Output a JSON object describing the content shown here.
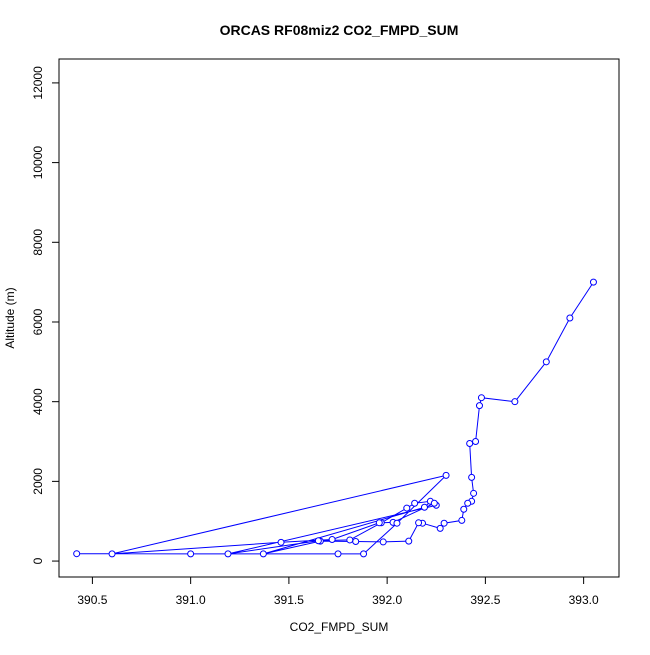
{
  "chart_data": {
    "type": "line",
    "title": "ORCAS RF08miz2 CO2_FMPD_SUM",
    "xlabel": "CO2_FMPD_SUM",
    "ylabel": "Altitude (m)",
    "xlim": [
      390.33,
      393.18
    ],
    "ylim": [
      -400,
      12600
    ],
    "x_ticks": [
      390.5,
      391.0,
      391.5,
      392.0,
      392.5,
      393.0
    ],
    "x_tick_labels": [
      "390.5",
      "391.0",
      "391.5",
      "392.0",
      "392.5",
      "393.0"
    ],
    "y_ticks": [
      0,
      2000,
      4000,
      6000,
      8000,
      10000,
      12000
    ],
    "y_tick_labels": [
      "0",
      "2000",
      "4000",
      "6000",
      "8000",
      "10000",
      "12000"
    ],
    "grid": false,
    "series_color": "#0000ff",
    "marker": "open-circle",
    "series": [
      {
        "x": [
          393.05,
          392.93,
          392.81,
          392.65,
          392.48,
          392.47,
          392.45,
          392.42,
          392.43,
          392.44,
          392.43,
          392.41,
          392.39,
          392.38,
          392.29,
          392.27,
          392.18,
          392.16,
          392.11,
          391.98,
          391.84,
          391.66,
          391.37,
          392.19,
          392.22,
          392.14,
          392.1,
          391.97,
          391.81,
          391.65,
          391.19,
          392.25,
          392.24,
          392.03,
          391.96,
          391.72,
          391.46,
          390.6,
          392.3,
          392.05,
          391.88,
          391.75,
          390.42,
          391.0
        ],
        "y": [
          7000,
          6100,
          5000,
          4000,
          4100,
          3900,
          3000,
          2950,
          2100,
          1700,
          1500,
          1450,
          1300,
          1020,
          950,
          820,
          950,
          960,
          500,
          480,
          490,
          500,
          180,
          1350,
          1500,
          1450,
          1330,
          960,
          530,
          510,
          180,
          1400,
          1450,
          970,
          960,
          540,
          470,
          180,
          2150,
          950,
          180,
          180,
          185,
          180
        ]
      }
    ]
  }
}
